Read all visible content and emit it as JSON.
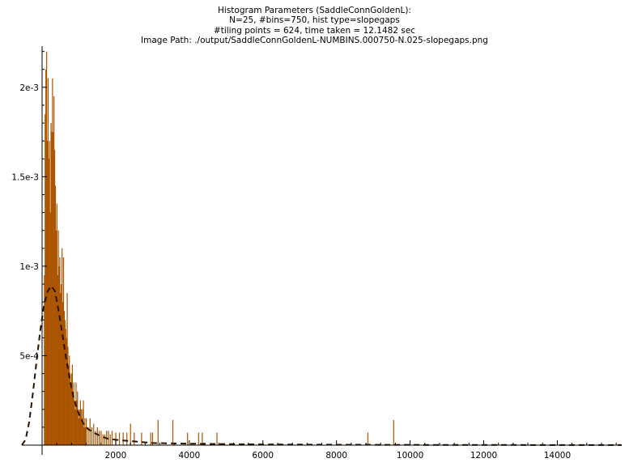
{
  "title_lines": [
    "Histogram Parameters (SaddleConnGoldenL):",
    "N=25, #bins=750, hist type=slopegaps",
    "#tiling points = 624, time taken = 12.1482 sec",
    "Image Path: ./output/SaddleConnGoldenL-NUMBINS.000750-N.025-slopegaps.png"
  ],
  "chart_data": {
    "type": "bar",
    "title": "Histogram Parameters (SaddleConnGoldenL):\nN=25, #bins=750, hist type=slopegaps\n#tiling points = 624, time taken = 12.1482 sec\nImage Path: ./output/SaddleConnGoldenL-NUMBINS.000750-N.025-slopegaps.png",
    "xlabel": "",
    "ylabel": "",
    "xlim": [
      -550,
      15750
    ],
    "ylim": [
      0,
      0.00223
    ],
    "x_ticks": [
      2000,
      4000,
      6000,
      8000,
      10000,
      12000,
      14000
    ],
    "x_tick_labels": [
      "2000",
      "4000",
      "6000",
      "8000",
      "10000",
      "12000",
      "14000"
    ],
    "y_ticks": [
      0.0005,
      0.001,
      0.0015,
      0.002
    ],
    "y_tick_labels": [
      "5e-4",
      "1e-3",
      "1.5e-3",
      "2e-3"
    ],
    "bar_color": "#aa5500",
    "curve_color": "#2a1400",
    "bin_width": 21,
    "bins": [
      [
        60,
        0.00095
      ],
      [
        80,
        0.00185
      ],
      [
        100,
        0.0021
      ],
      [
        120,
        0.0022
      ],
      [
        140,
        0.0017
      ],
      [
        160,
        0.00205
      ],
      [
        180,
        0.0016
      ],
      [
        200,
        0.0017
      ],
      [
        220,
        0.0013
      ],
      [
        240,
        0.0018
      ],
      [
        260,
        0.00175
      ],
      [
        280,
        0.00205
      ],
      [
        300,
        0.00175
      ],
      [
        320,
        0.00195
      ],
      [
        340,
        0.00165
      ],
      [
        360,
        0.00145
      ],
      [
        380,
        0.0012
      ],
      [
        400,
        0.00135
      ],
      [
        420,
        0.00095
      ],
      [
        440,
        0.0012
      ],
      [
        460,
        0.001
      ],
      [
        480,
        0.00105
      ],
      [
        500,
        0.00085
      ],
      [
        520,
        0.0009
      ],
      [
        540,
        0.0011
      ],
      [
        560,
        0.0008
      ],
      [
        580,
        0.00105
      ],
      [
        600,
        0.00075
      ],
      [
        620,
        0.0007
      ],
      [
        640,
        0.00065
      ],
      [
        660,
        0.0006
      ],
      [
        680,
        0.00085
      ],
      [
        700,
        0.00055
      ],
      [
        720,
        0.00045
      ],
      [
        740,
        0.0005
      ],
      [
        760,
        0.0004
      ],
      [
        780,
        0.00035
      ],
      [
        800,
        0.0004
      ],
      [
        820,
        0.00045
      ],
      [
        840,
        0.0003
      ],
      [
        860,
        0.00035
      ],
      [
        880,
        0.00025
      ],
      [
        900,
        0.0002
      ],
      [
        920,
        0.00035
      ],
      [
        940,
        0.00025
      ],
      [
        960,
        0.0003
      ],
      [
        980,
        0.0002
      ],
      [
        1000,
        0.00015
      ],
      [
        1020,
        0.0002
      ],
      [
        1040,
        0.00025
      ],
      [
        1060,
        0.0002
      ],
      [
        1080,
        0.00015
      ],
      [
        1100,
        0.0002
      ],
      [
        1120,
        0.00025
      ],
      [
        1140,
        0.0001
      ],
      [
        1160,
        0.00015
      ],
      [
        1180,
        0.0001
      ],
      [
        1200,
        0.00015
      ],
      [
        1250,
        0.0001
      ],
      [
        1300,
        0.00015
      ],
      [
        1350,
        0.0001
      ],
      [
        1400,
        0.00012
      ],
      [
        1450,
        8e-05
      ],
      [
        1500,
        0.0001
      ],
      [
        1550,
        8e-05
      ],
      [
        1600,
        8e-05
      ],
      [
        1650,
        6e-05
      ],
      [
        1700,
        6e-05
      ],
      [
        1750,
        8e-05
      ],
      [
        1800,
        8e-05
      ],
      [
        1850,
        6e-05
      ],
      [
        1900,
        8e-05
      ],
      [
        2000,
        7e-05
      ],
      [
        2100,
        7e-05
      ],
      [
        2200,
        7e-05
      ],
      [
        2300,
        7e-05
      ],
      [
        2400,
        0.00012
      ],
      [
        2500,
        7e-05
      ],
      [
        2700,
        7e-05
      ],
      [
        2950,
        7e-05
      ],
      [
        3000,
        7e-05
      ],
      [
        3150,
        0.00014
      ],
      [
        3550,
        0.00014
      ],
      [
        3950,
        7e-05
      ],
      [
        4250,
        7e-05
      ],
      [
        4350,
        7e-05
      ],
      [
        4750,
        7e-05
      ],
      [
        8850,
        7e-05
      ],
      [
        9550,
        0.00014
      ]
    ],
    "fitted_curve": [
      [
        -550,
        0.0
      ],
      [
        -450,
        3e-05
      ],
      [
        -350,
        0.00013
      ],
      [
        -250,
        0.00029
      ],
      [
        -150,
        0.00047
      ],
      [
        -50,
        0.00064
      ],
      [
        50,
        0.00078
      ],
      [
        150,
        0.00086
      ],
      [
        250,
        0.00089
      ],
      [
        350,
        0.00086
      ],
      [
        450,
        0.00075
      ],
      [
        550,
        0.00062
      ],
      [
        650,
        0.00049
      ],
      [
        750,
        0.00037
      ],
      [
        850,
        0.00027
      ],
      [
        950,
        0.0002
      ],
      [
        1050,
        0.00015
      ],
      [
        1150,
        0.00011
      ],
      [
        1250,
        9e-05
      ],
      [
        1400,
        7e-05
      ],
      [
        1600,
        5e-05
      ],
      [
        1800,
        3.5e-05
      ],
      [
        2000,
        3e-05
      ],
      [
        3000,
        1.2e-05
      ],
      [
        4000,
        8e-06
      ],
      [
        6000,
        4e-06
      ],
      [
        8000,
        2.5e-06
      ],
      [
        10000,
        1.5e-06
      ],
      [
        12000,
        1e-06
      ],
      [
        15750,
        5e-07
      ]
    ]
  }
}
